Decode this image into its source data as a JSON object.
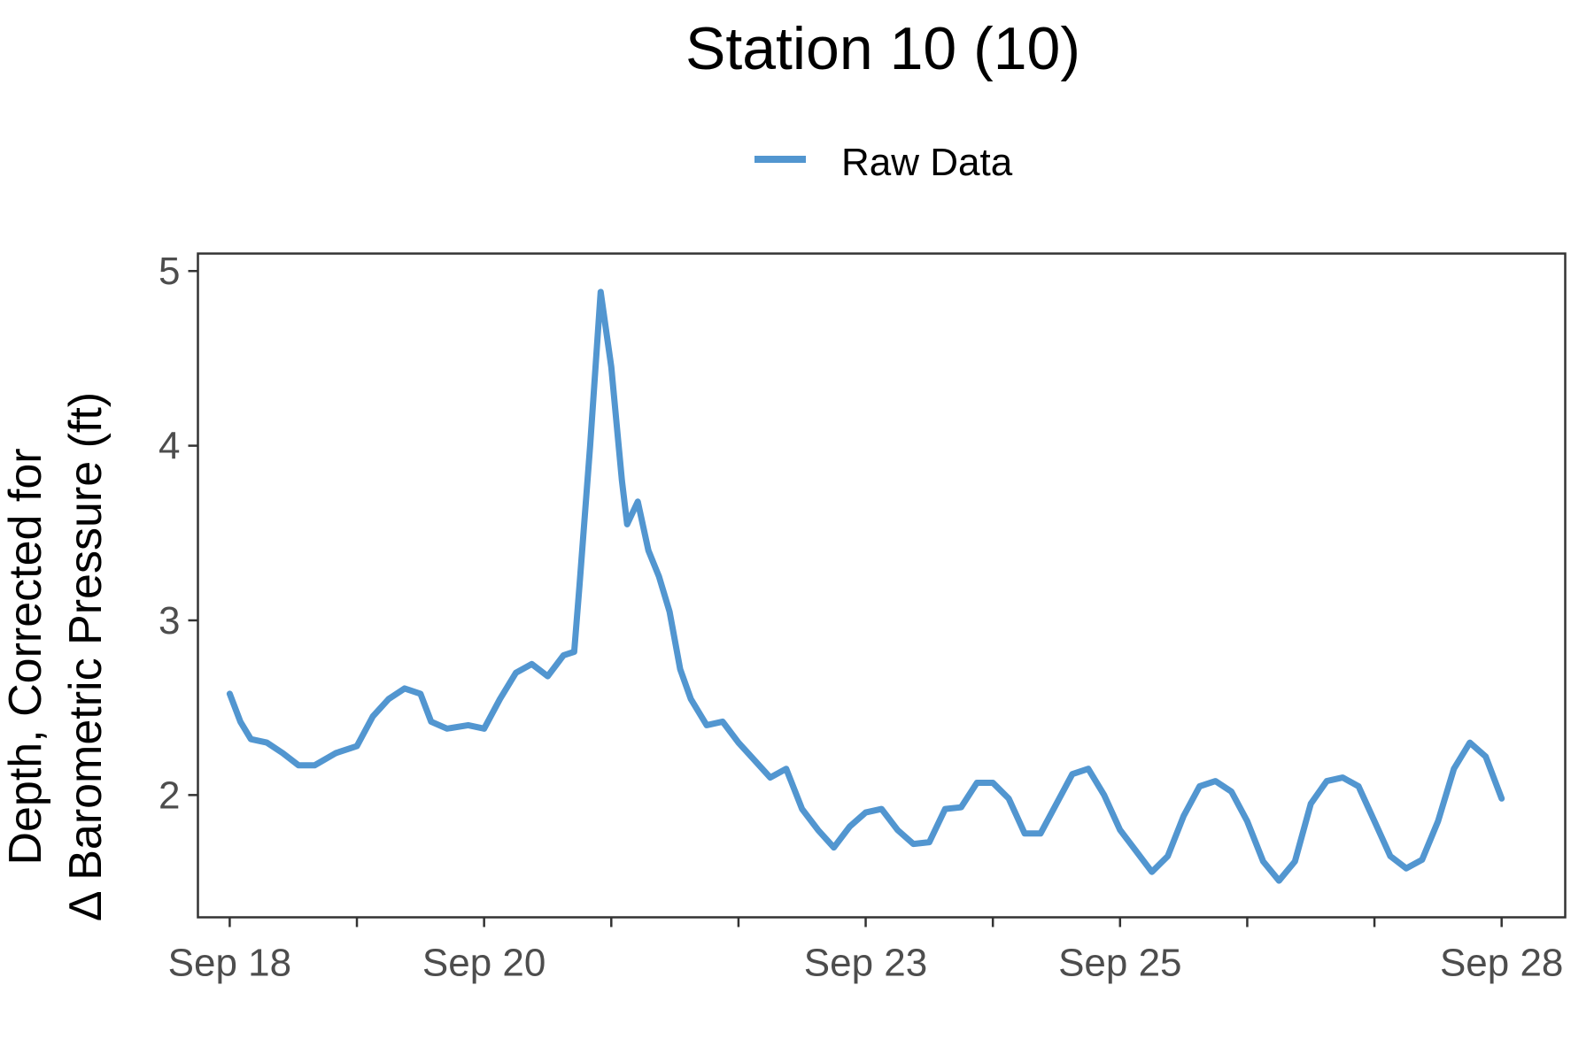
{
  "chart_data": {
    "type": "line",
    "title": "Station 10 (10)",
    "xlabel": "",
    "ylabel_line1": "Depth, Corrected for",
    "ylabel_line2": "Δ Barometric Pressure (ft)",
    "xlim": [
      "2024-09-17 18:00",
      "2024-09-28 12:00"
    ],
    "ylim": [
      1.3,
      5.1
    ],
    "grid": false,
    "legend_position": "top",
    "x_ticks": [
      {
        "value": "2024-09-18 00:00",
        "label": "Sep 18"
      },
      {
        "value": "2024-09-19 00:00",
        "label": ""
      },
      {
        "value": "2024-09-20 00:00",
        "label": "Sep 20"
      },
      {
        "value": "2024-09-21 00:00",
        "label": ""
      },
      {
        "value": "2024-09-22 00:00",
        "label": ""
      },
      {
        "value": "2024-09-23 00:00",
        "label": "Sep 23"
      },
      {
        "value": "2024-09-24 00:00",
        "label": ""
      },
      {
        "value": "2024-09-25 00:00",
        "label": "Sep 25"
      },
      {
        "value": "2024-09-26 00:00",
        "label": ""
      },
      {
        "value": "2024-09-27 00:00",
        "label": ""
      },
      {
        "value": "2024-09-28 00:00",
        "label": "Sep 28"
      }
    ],
    "y_ticks": [
      {
        "value": 2,
        "label": "2"
      },
      {
        "value": 3,
        "label": "3"
      },
      {
        "value": 4,
        "label": "4"
      },
      {
        "value": 5,
        "label": "5"
      }
    ],
    "series": [
      {
        "name": "Raw Data",
        "color": "#5296D0",
        "points": [
          [
            "2024-09-18 00:00",
            2.58
          ],
          [
            "2024-09-18 02:00",
            2.42
          ],
          [
            "2024-09-18 04:00",
            2.32
          ],
          [
            "2024-09-18 07:00",
            2.3
          ],
          [
            "2024-09-18 10:00",
            2.24
          ],
          [
            "2024-09-18 13:00",
            2.17
          ],
          [
            "2024-09-18 16:00",
            2.17
          ],
          [
            "2024-09-18 20:00",
            2.24
          ],
          [
            "2024-09-19 00:00",
            2.28
          ],
          [
            "2024-09-19 03:00",
            2.45
          ],
          [
            "2024-09-19 06:00",
            2.55
          ],
          [
            "2024-09-19 09:00",
            2.61
          ],
          [
            "2024-09-19 12:00",
            2.58
          ],
          [
            "2024-09-19 14:00",
            2.42
          ],
          [
            "2024-09-19 17:00",
            2.38
          ],
          [
            "2024-09-19 21:00",
            2.4
          ],
          [
            "2024-09-20 00:00",
            2.38
          ],
          [
            "2024-09-20 03:00",
            2.55
          ],
          [
            "2024-09-20 06:00",
            2.7
          ],
          [
            "2024-09-20 09:00",
            2.75
          ],
          [
            "2024-09-20 12:00",
            2.68
          ],
          [
            "2024-09-20 15:00",
            2.8
          ],
          [
            "2024-09-20 17:00",
            2.82
          ],
          [
            "2024-09-20 18:00",
            3.2
          ],
          [
            "2024-09-20 20:00",
            4.0
          ],
          [
            "2024-09-20 22:00",
            4.88
          ],
          [
            "2024-09-21 00:00",
            4.45
          ],
          [
            "2024-09-21 02:00",
            3.8
          ],
          [
            "2024-09-21 03:00",
            3.55
          ],
          [
            "2024-09-21 05:00",
            3.68
          ],
          [
            "2024-09-21 07:00",
            3.4
          ],
          [
            "2024-09-21 09:00",
            3.25
          ],
          [
            "2024-09-21 11:00",
            3.05
          ],
          [
            "2024-09-21 13:00",
            2.72
          ],
          [
            "2024-09-21 15:00",
            2.55
          ],
          [
            "2024-09-21 18:00",
            2.4
          ],
          [
            "2024-09-21 21:00",
            2.42
          ],
          [
            "2024-09-22 00:00",
            2.3
          ],
          [
            "2024-09-22 03:00",
            2.2
          ],
          [
            "2024-09-22 06:00",
            2.1
          ],
          [
            "2024-09-22 09:00",
            2.15
          ],
          [
            "2024-09-22 12:00",
            1.92
          ],
          [
            "2024-09-22 15:00",
            1.8
          ],
          [
            "2024-09-22 18:00",
            1.7
          ],
          [
            "2024-09-22 21:00",
            1.82
          ],
          [
            "2024-09-23 00:00",
            1.9
          ],
          [
            "2024-09-23 03:00",
            1.92
          ],
          [
            "2024-09-23 06:00",
            1.8
          ],
          [
            "2024-09-23 09:00",
            1.72
          ],
          [
            "2024-09-23 12:00",
            1.73
          ],
          [
            "2024-09-23 15:00",
            1.92
          ],
          [
            "2024-09-23 18:00",
            1.93
          ],
          [
            "2024-09-23 21:00",
            2.07
          ],
          [
            "2024-09-24 00:00",
            2.07
          ],
          [
            "2024-09-24 03:00",
            1.98
          ],
          [
            "2024-09-24 06:00",
            1.78
          ],
          [
            "2024-09-24 09:00",
            1.78
          ],
          [
            "2024-09-24 12:00",
            1.95
          ],
          [
            "2024-09-24 15:00",
            2.12
          ],
          [
            "2024-09-24 18:00",
            2.15
          ],
          [
            "2024-09-24 21:00",
            2.0
          ],
          [
            "2024-09-25 00:00",
            1.8
          ],
          [
            "2024-09-25 03:00",
            1.68
          ],
          [
            "2024-09-25 06:00",
            1.56
          ],
          [
            "2024-09-25 09:00",
            1.65
          ],
          [
            "2024-09-25 12:00",
            1.88
          ],
          [
            "2024-09-25 15:00",
            2.05
          ],
          [
            "2024-09-25 18:00",
            2.08
          ],
          [
            "2024-09-25 21:00",
            2.02
          ],
          [
            "2024-09-26 00:00",
            1.85
          ],
          [
            "2024-09-26 03:00",
            1.62
          ],
          [
            "2024-09-26 06:00",
            1.51
          ],
          [
            "2024-09-26 09:00",
            1.62
          ],
          [
            "2024-09-26 12:00",
            1.95
          ],
          [
            "2024-09-26 15:00",
            2.08
          ],
          [
            "2024-09-26 18:00",
            2.1
          ],
          [
            "2024-09-26 21:00",
            2.05
          ],
          [
            "2024-09-27 00:00",
            1.85
          ],
          [
            "2024-09-27 03:00",
            1.65
          ],
          [
            "2024-09-27 06:00",
            1.58
          ],
          [
            "2024-09-27 09:00",
            1.63
          ],
          [
            "2024-09-27 12:00",
            1.85
          ],
          [
            "2024-09-27 15:00",
            2.15
          ],
          [
            "2024-09-27 18:00",
            2.3
          ],
          [
            "2024-09-27 21:00",
            2.22
          ],
          [
            "2024-09-28 00:00",
            1.98
          ]
        ]
      }
    ]
  }
}
